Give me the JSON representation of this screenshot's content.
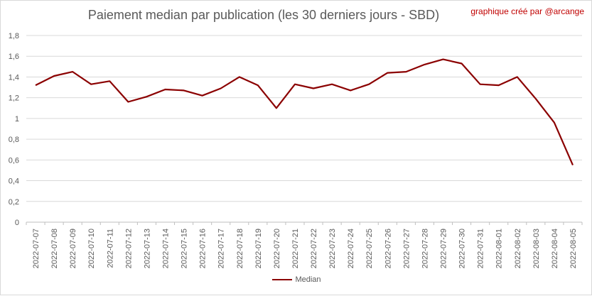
{
  "chart_data": {
    "type": "line",
    "title": "Paiement median par publication (les 30 derniers jours - SBD)",
    "credit": "graphique créé par @arcange",
    "categories": [
      "2022-07-07",
      "2022-07-08",
      "2022-07-09",
      "2022-07-10",
      "2022-07-11",
      "2022-07-12",
      "2022-07-13",
      "2022-07-14",
      "2022-07-15",
      "2022-07-16",
      "2022-07-17",
      "2022-07-18",
      "2022-07-19",
      "2022-07-20",
      "2022-07-21",
      "2022-07-22",
      "2022-07-23",
      "2022-07-24",
      "2022-07-25",
      "2022-07-26",
      "2022-07-27",
      "2022-07-28",
      "2022-07-29",
      "2022-07-30",
      "2022-07-31",
      "2022-08-01",
      "2022-08-02",
      "2022-08-03",
      "2022-08-04",
      "2022-08-05"
    ],
    "series": [
      {
        "name": "Median",
        "color": "#8b0000",
        "values": [
          1.32,
          1.41,
          1.45,
          1.33,
          1.36,
          1.16,
          1.21,
          1.28,
          1.27,
          1.22,
          1.29,
          1.4,
          1.32,
          1.1,
          1.33,
          1.29,
          1.33,
          1.27,
          1.33,
          1.44,
          1.45,
          1.52,
          1.57,
          1.53,
          1.33,
          1.32,
          1.4,
          1.19,
          0.96,
          0.55
        ]
      }
    ],
    "ylim": [
      0,
      1.8
    ],
    "yticks": [
      "0",
      "0,2",
      "0,4",
      "0,6",
      "0,8",
      "1",
      "1,2",
      "1,4",
      "1,6",
      "1,8"
    ],
    "grid": true,
    "legend": "bottom"
  }
}
